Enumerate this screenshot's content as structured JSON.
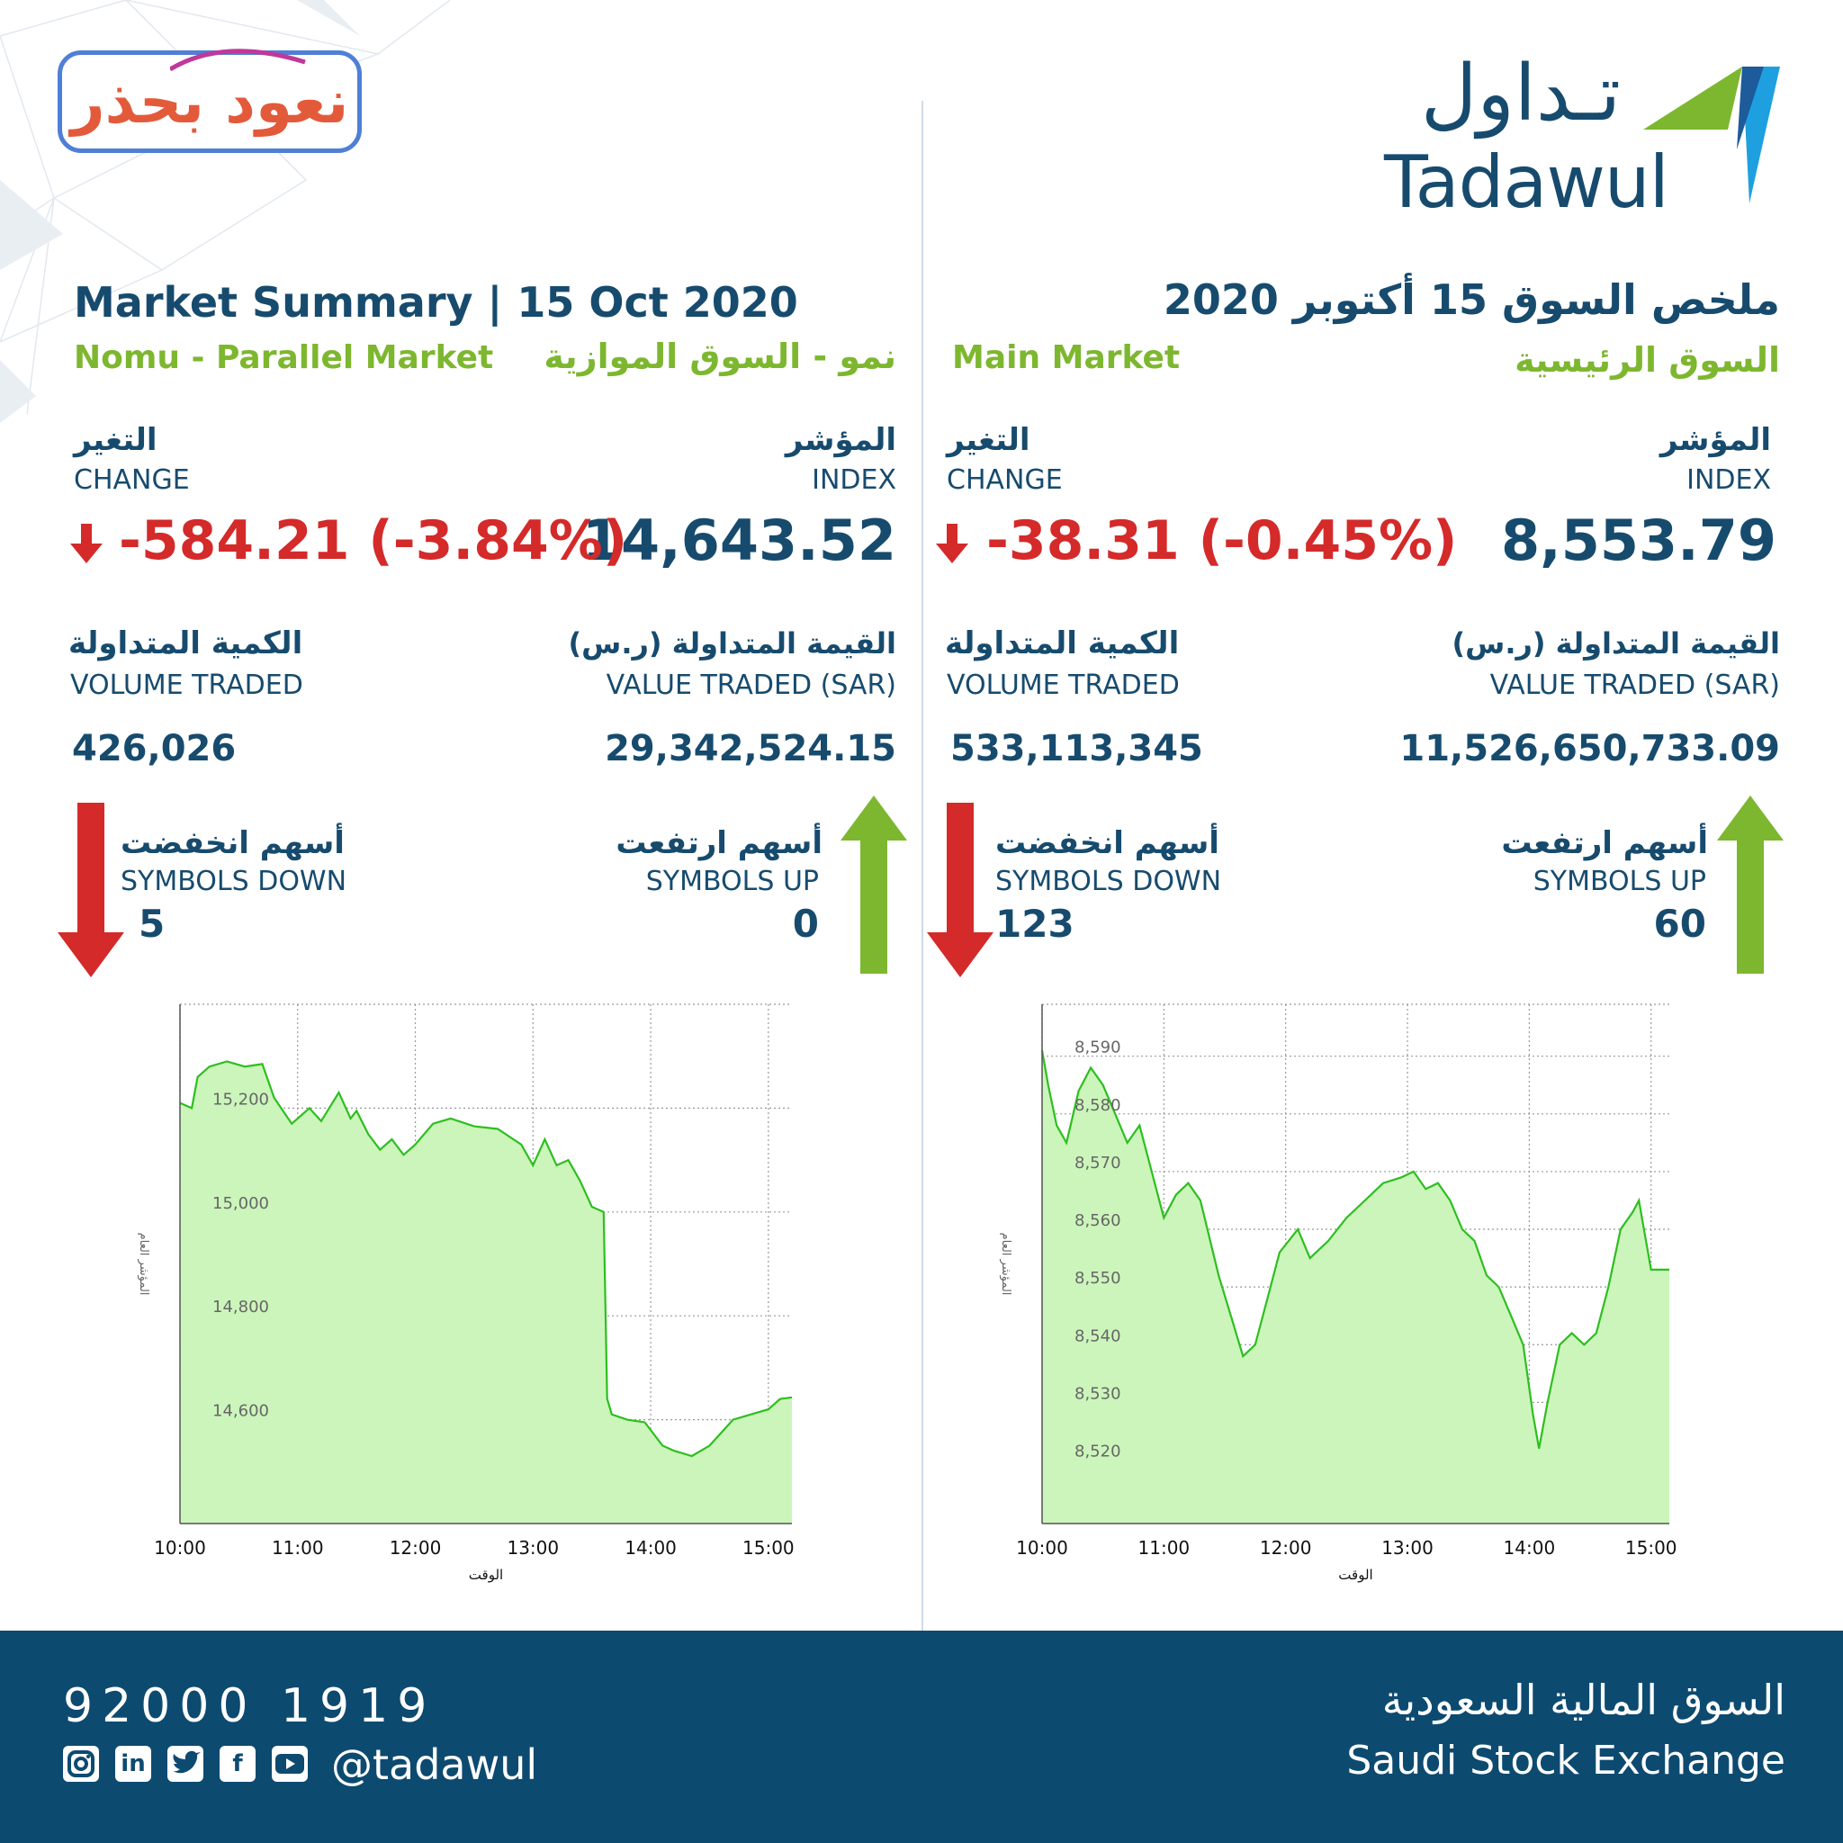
{
  "header": {
    "campaign_logo_text": "نعود بحذر",
    "tadawul_logo_ar": "تـداول",
    "tadawul_logo_en": "Tadawul",
    "title_en": "Market Summary | 15 Oct 2020",
    "title_ar": "ملخص السوق 15 أكتوبر 2020"
  },
  "nomu": {
    "label_en": "Nomu - Parallel Market",
    "label_ar": "نمو - السوق الموازية",
    "index_label_ar": "المؤشر",
    "index_label_en": "INDEX",
    "index_value": "14,643.52",
    "change_label_ar": "التغير",
    "change_label_en": "CHANGE",
    "change_value": "-584.21 (-3.84%)",
    "value_label_ar": "القيمة المتداولة (ر.س)",
    "value_label_en": "VALUE TRADED (SAR)",
    "value_traded": "29,342,524.15",
    "volume_label_ar": "الكمية المتداولة",
    "volume_label_en": "VOLUME TRADED",
    "volume_traded": "426,026",
    "up_label_ar": "أسهم ارتفعت",
    "up_label_en": "SYMBOLS UP",
    "up_count": "0",
    "down_label_ar": "أسهم انخفضت",
    "down_label_en": "SYMBOLS DOWN",
    "down_count": "5"
  },
  "main": {
    "label_en": "Main Market",
    "label_ar": "السوق الرئيسية",
    "index_label_ar": "المؤشر",
    "index_label_en": "INDEX",
    "index_value": "8,553.79",
    "change_label_ar": "التغير",
    "change_label_en": "CHANGE",
    "change_value": "-38.31 (-0.45%)",
    "value_label_ar": "القيمة المتداولة (ر.س)",
    "value_label_en": "VALUE TRADED (SAR)",
    "value_traded": "11,526,650,733.09",
    "volume_label_ar": "الكمية المتداولة",
    "volume_label_en": "VOLUME TRADED",
    "volume_traded": "533,113,345",
    "up_label_ar": "أسهم ارتفعت",
    "up_label_en": "SYMBOLS UP",
    "up_count": "60",
    "down_label_ar": "أسهم انخفضت",
    "down_label_en": "SYMBOLS DOWN",
    "down_count": "123"
  },
  "footer": {
    "phone": "92000 1919",
    "handle": "@tadawul",
    "exchange_ar": "السوق المالية السعودية",
    "exchange_en": "Saudi Stock Exchange",
    "social_icons": [
      "instagram-icon",
      "linkedin-icon",
      "twitter-icon",
      "facebook-icon",
      "youtube-icon"
    ]
  },
  "colors": {
    "navy": "#174b6e",
    "green": "#7db72f",
    "red": "#d42a2a",
    "chart_fill": "#ccf5bb",
    "chart_line": "#2dbf1f",
    "footer_bg": "#0d4a70"
  },
  "chart_data": [
    {
      "type": "area",
      "market": "nomu",
      "xlabel": "الوقت",
      "ylabel": "المؤشر العام",
      "xticks": [
        "10:00",
        "11:00",
        "12:00",
        "13:00",
        "14:00",
        "15:00"
      ],
      "yticks": [
        15200,
        15000,
        14800,
        14600
      ],
      "ylim": [
        14400,
        15400
      ],
      "xlim": [
        0,
        5.2
      ],
      "grid": true,
      "x": [
        0.0,
        0.1,
        0.15,
        0.25,
        0.4,
        0.55,
        0.7,
        0.8,
        0.95,
        1.1,
        1.2,
        1.35,
        1.45,
        1.5,
        1.6,
        1.7,
        1.8,
        1.9,
        2.0,
        2.15,
        2.3,
        2.5,
        2.7,
        2.9,
        3.0,
        3.1,
        3.2,
        3.3,
        3.4,
        3.5,
        3.6,
        3.63,
        3.67,
        3.8,
        3.95,
        4.1,
        4.2,
        4.35,
        4.5,
        4.7,
        4.85,
        5.0,
        5.1,
        5.2
      ],
      "y": [
        15210,
        15200,
        15260,
        15280,
        15290,
        15280,
        15285,
        15220,
        15170,
        15200,
        15175,
        15230,
        15180,
        15195,
        15150,
        15120,
        15140,
        15110,
        15130,
        15170,
        15180,
        15165,
        15160,
        15130,
        15090,
        15140,
        15090,
        15100,
        15060,
        15010,
        15000,
        14640,
        14610,
        14600,
        14595,
        14550,
        14540,
        14530,
        14550,
        14600,
        14610,
        14620,
        14640,
        14643
      ]
    },
    {
      "type": "area",
      "market": "main",
      "xlabel": "الوقت",
      "ylabel": "المؤشر العام",
      "xticks": [
        "10:00",
        "11:00",
        "12:00",
        "13:00",
        "14:00",
        "15:00"
      ],
      "yticks": [
        8590,
        8580,
        8570,
        8560,
        8550,
        8540,
        8530,
        8520
      ],
      "ylim": [
        8509,
        8599
      ],
      "xlim": [
        0,
        5.15
      ],
      "grid": true,
      "x": [
        0.0,
        0.05,
        0.12,
        0.2,
        0.3,
        0.4,
        0.5,
        0.6,
        0.7,
        0.8,
        0.9,
        1.0,
        1.1,
        1.2,
        1.3,
        1.45,
        1.55,
        1.65,
        1.75,
        1.85,
        1.95,
        2.1,
        2.2,
        2.35,
        2.5,
        2.65,
        2.8,
        2.95,
        3.05,
        3.15,
        3.25,
        3.35,
        3.45,
        3.55,
        3.65,
        3.75,
        3.85,
        3.95,
        4.03,
        4.08,
        4.15,
        4.25,
        4.35,
        4.45,
        4.55,
        4.65,
        4.75,
        4.85,
        4.9,
        5.0,
        5.15
      ],
      "y": [
        8591,
        8585,
        8578,
        8575,
        8584,
        8588,
        8585,
        8580,
        8575,
        8578,
        8570,
        8562,
        8566,
        8568,
        8565,
        8552,
        8545,
        8538,
        8540,
        8548,
        8556,
        8560,
        8555,
        8558,
        8562,
        8565,
        8568,
        8569,
        8570,
        8567,
        8568,
        8565,
        8560,
        8558,
        8552,
        8550,
        8545,
        8540,
        8528,
        8522,
        8530,
        8540,
        8542,
        8540,
        8542,
        8550,
        8560,
        8563,
        8565,
        8553,
        8553
      ]
    }
  ]
}
